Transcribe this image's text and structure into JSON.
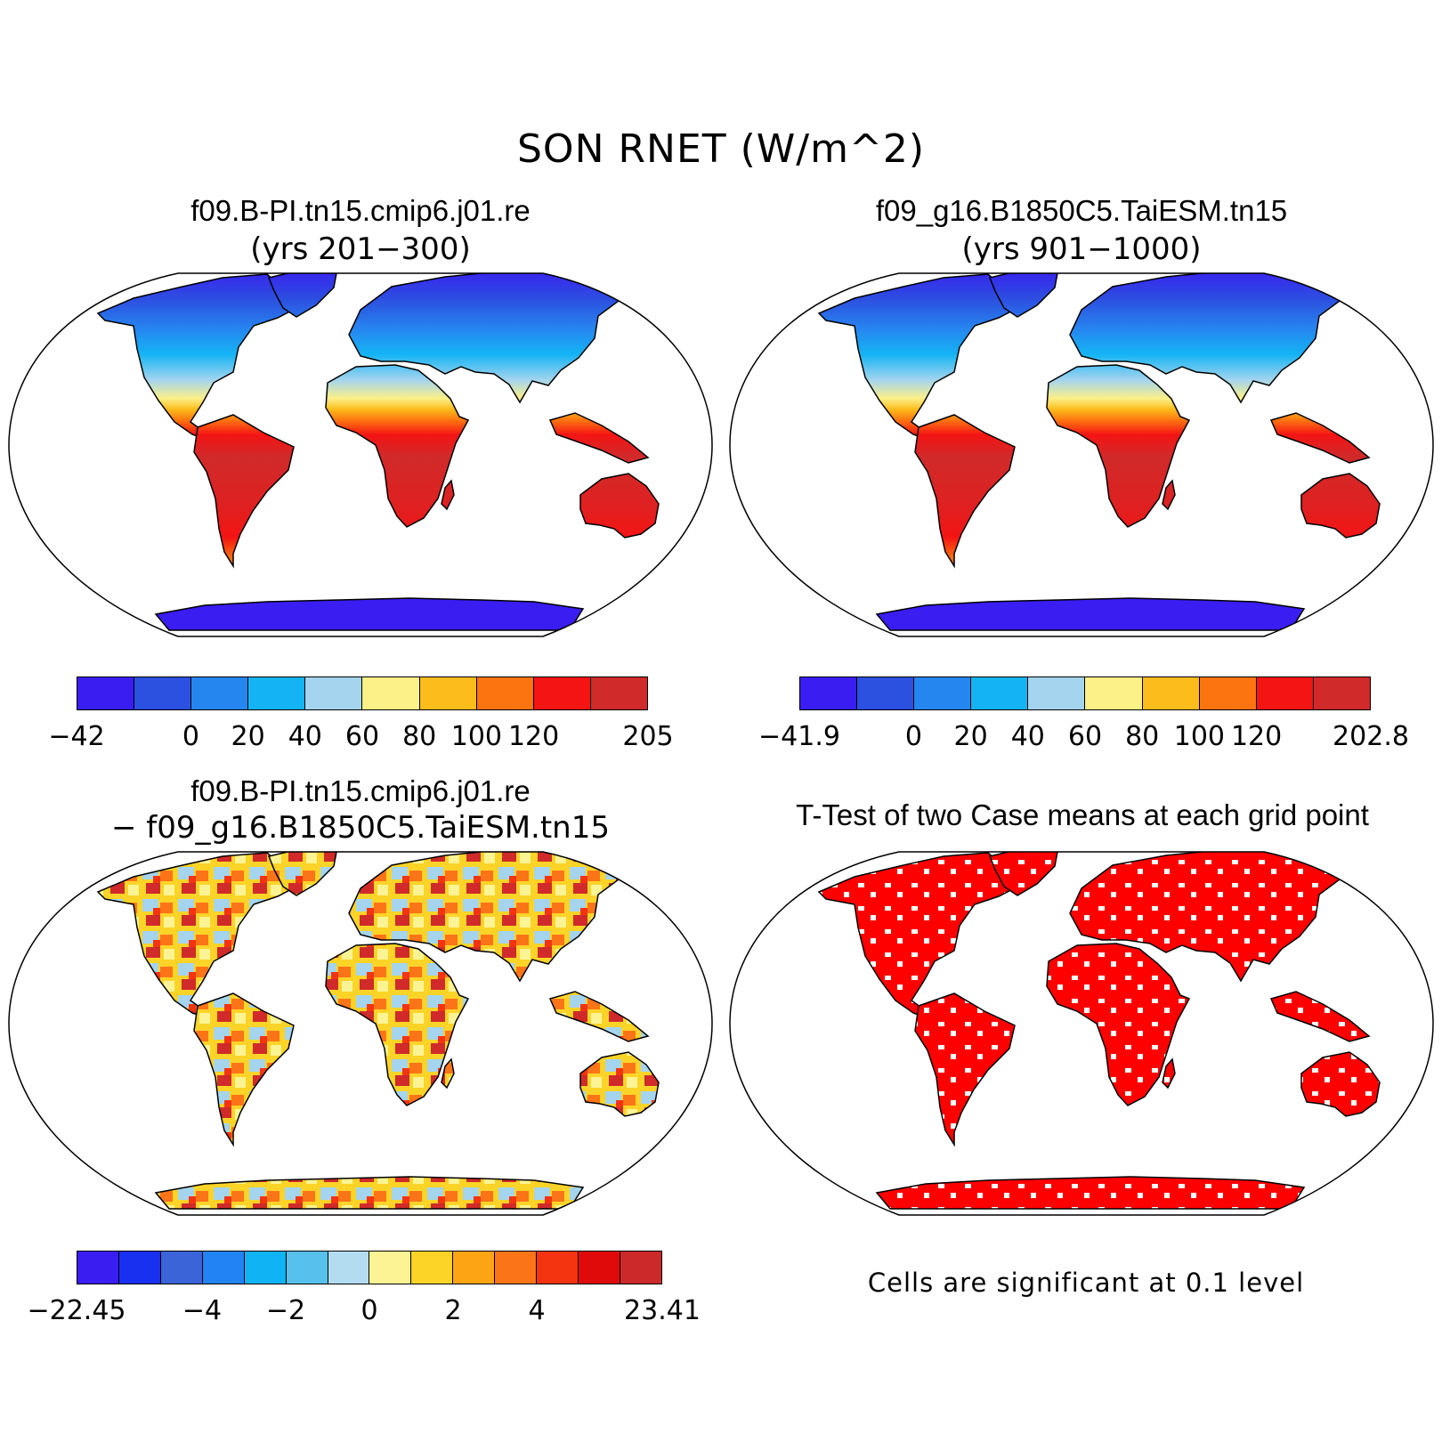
{
  "title": "SON RNET (W/m^2)",
  "panels": [
    {
      "title": "f09.B-PI.tn15.cmip6.j01.re",
      "subtitle": "(yrs 201−300)",
      "colorbar": {
        "colors": [
          "#3a1df0",
          "#2c50e0",
          "#2686f0",
          "#14b4f4",
          "#a4d4ee",
          "#fcf088",
          "#fcbc1c",
          "#fc7410",
          "#f41414",
          "#d02a2a"
        ],
        "labels": [
          "−42",
          "",
          "0",
          "20",
          "40",
          "60",
          "80",
          "100",
          "120",
          "",
          "205"
        ]
      }
    },
    {
      "title": "f09_g16.B1850C5.TaiESM.tn15",
      "subtitle": "(yrs 901−1000)",
      "colorbar": {
        "colors": [
          "#3a1df0",
          "#2c50e0",
          "#2686f0",
          "#14b4f4",
          "#a4d4ee",
          "#fcf088",
          "#fcbc1c",
          "#fc7410",
          "#f41414",
          "#d02a2a"
        ],
        "labels": [
          "−41.9",
          "",
          "0",
          "20",
          "40",
          "60",
          "80",
          "100",
          "120",
          "",
          "202.8"
        ]
      }
    },
    {
      "title": "f09.B-PI.tn15.cmip6.j01.re",
      "subtitle": "− f09_g16.B1850C5.TaiESM.tn15",
      "colorbar": {
        "colors": [
          "#3a1df0",
          "#1a30f0",
          "#3a64d8",
          "#2284f4",
          "#10b4f4",
          "#58c0ec",
          "#b4dcf0",
          "#fcf494",
          "#fcd428",
          "#fca414",
          "#fc7418",
          "#f43410",
          "#e00a0a",
          "#cc2a2a"
        ],
        "labels": [
          "−22.45",
          "",
          "",
          "−4",
          "",
          "−2",
          "",
          "0",
          "",
          "2",
          "",
          "4",
          "",
          "",
          "23.41"
        ]
      }
    },
    {
      "title": "T-Test of two Case means at each grid point",
      "note": "Cells are significant at 0.1 level",
      "sig_color": "#ff0000"
    }
  ]
}
